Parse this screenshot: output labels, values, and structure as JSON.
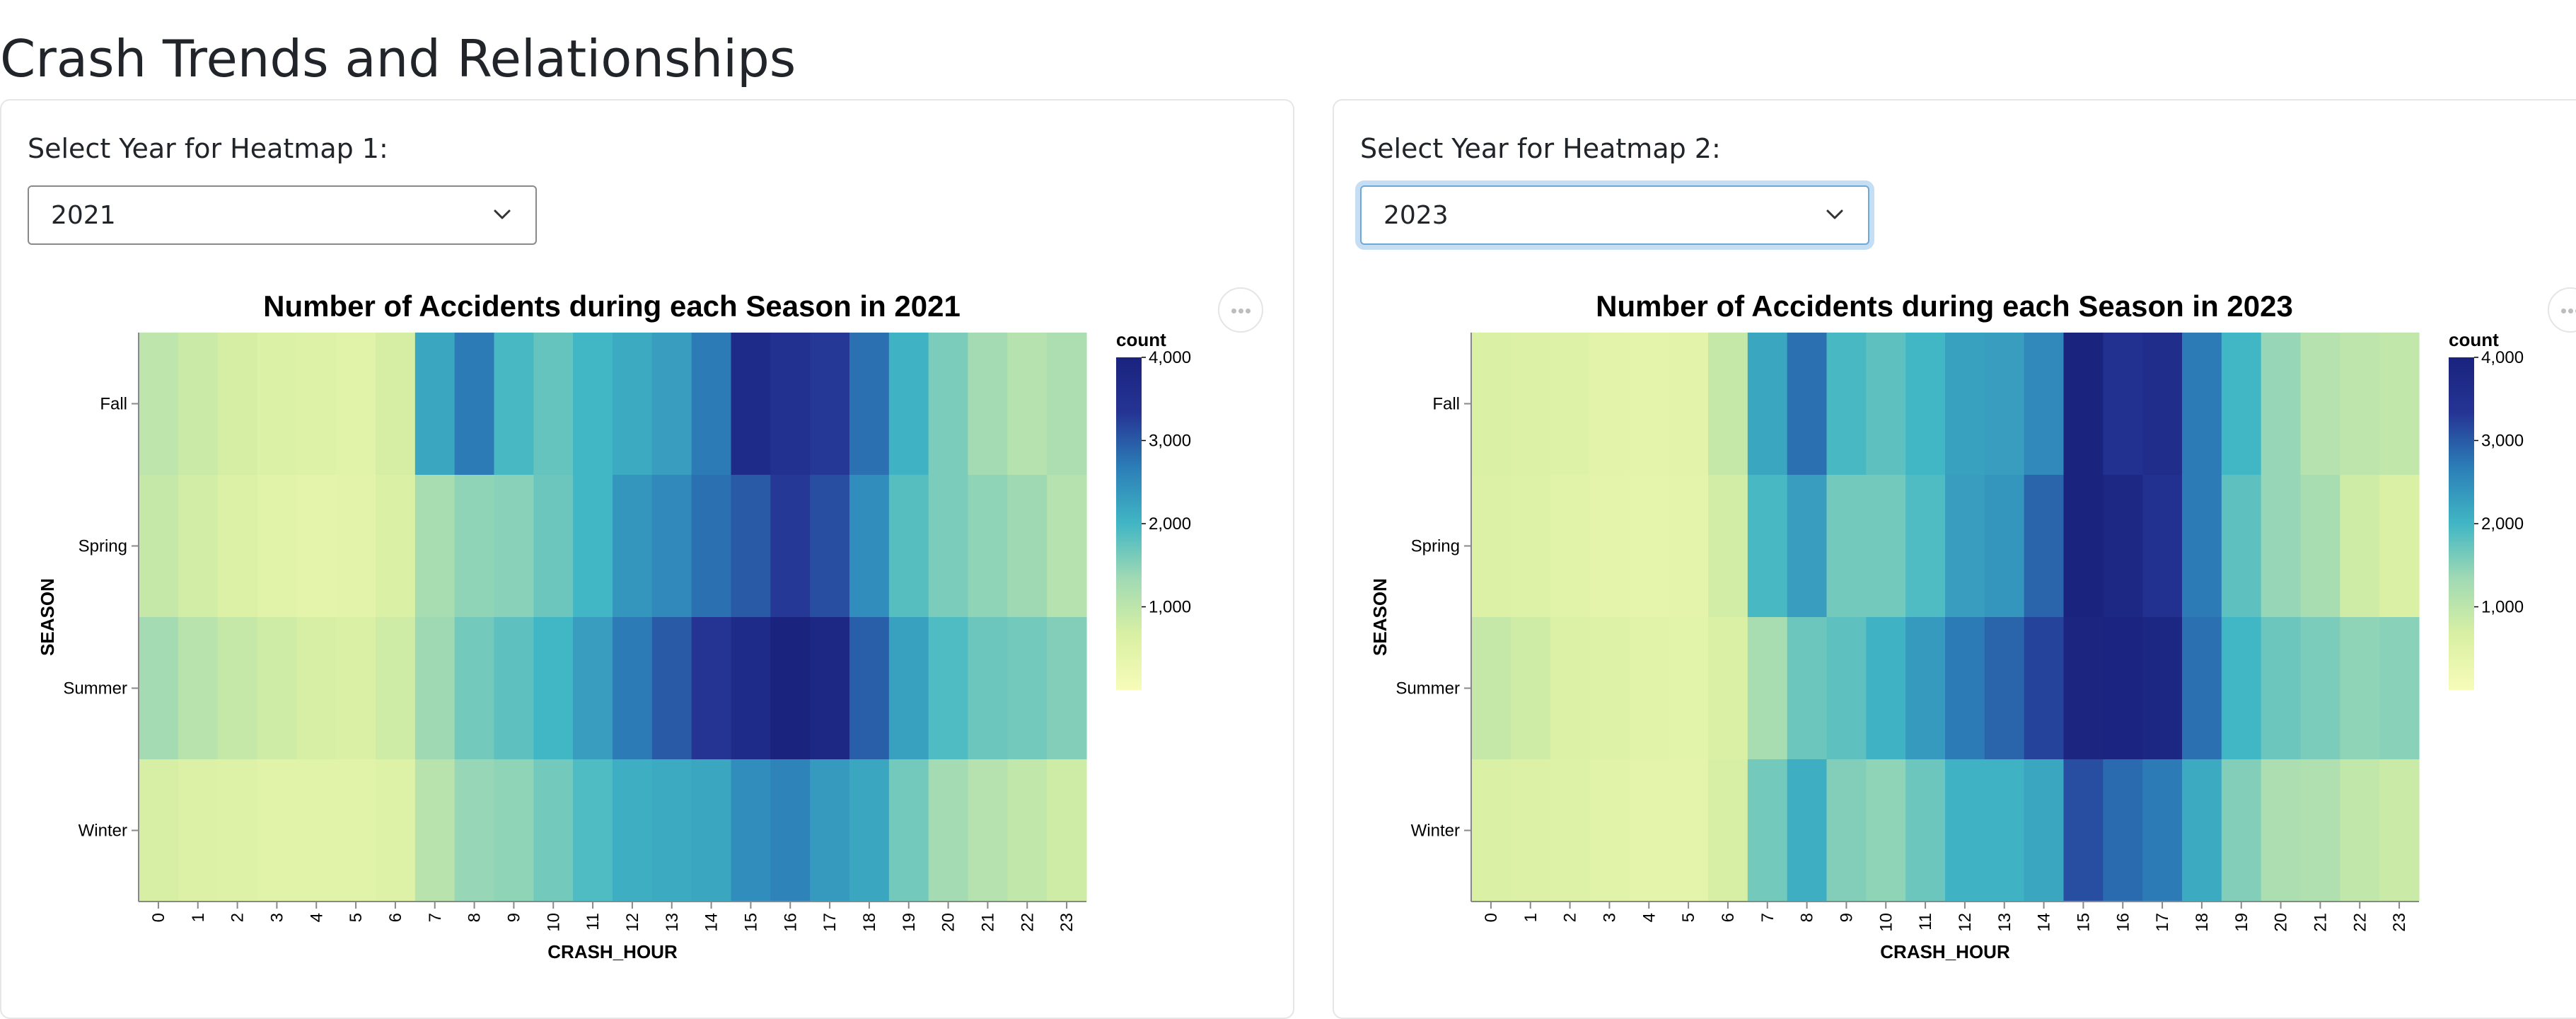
{
  "page": {
    "title": "Crash Trends and Relationships"
  },
  "panels": [
    {
      "select_label": "Select Year for Heatmap 1:",
      "selected_year": "2021",
      "focused": false
    },
    {
      "select_label": "Select Year for Heatmap 2:",
      "selected_year": "2023",
      "focused": true
    }
  ],
  "icons": {
    "dropdown": "chevron-down-icon",
    "menu": "more-horizontal-icon"
  },
  "color_scale": {
    "domain": [
      0,
      4000
    ],
    "stops": [
      "#f7fcb9",
      "#d9f0a3",
      "#a1dab4",
      "#41b6c4",
      "#2c7fb8",
      "#253494",
      "#1a237e"
    ]
  },
  "chart_data": [
    {
      "type": "heatmap",
      "title": "Number of Accidents during each Season in 2021",
      "xlabel": "CRASH_HOUR",
      "ylabel": "SEASON",
      "x": [
        "0",
        "1",
        "2",
        "3",
        "4",
        "5",
        "6",
        "7",
        "8",
        "9",
        "10",
        "11",
        "12",
        "13",
        "14",
        "15",
        "16",
        "17",
        "18",
        "19",
        "20",
        "21",
        "22",
        "23"
      ],
      "y": [
        "Fall",
        "Spring",
        "Summer",
        "Winter"
      ],
      "values": [
        [
          1000,
          850,
          720,
          620,
          560,
          520,
          720,
          2200,
          2700,
          1950,
          1750,
          2000,
          2150,
          2300,
          2700,
          3700,
          3500,
          3300,
          2800,
          2050,
          1600,
          1300,
          1100,
          1200
        ],
        [
          900,
          750,
          600,
          520,
          420,
          450,
          650,
          1250,
          1450,
          1500,
          1700,
          2000,
          2400,
          2550,
          2800,
          3000,
          3300,
          3100,
          2500,
          1850,
          1600,
          1450,
          1350,
          1100
        ],
        [
          1300,
          1050,
          900,
          780,
          700,
          650,
          800,
          1350,
          1650,
          1800,
          2000,
          2300,
          2700,
          3000,
          3350,
          3700,
          4000,
          3800,
          2950,
          2250,
          1900,
          1700,
          1650,
          1550
        ],
        [
          700,
          600,
          550,
          500,
          480,
          480,
          550,
          1050,
          1400,
          1450,
          1650,
          1900,
          2100,
          2150,
          2200,
          2500,
          2600,
          2350,
          2200,
          1650,
          1300,
          1100,
          950,
          800
        ]
      ],
      "legend_title": "count",
      "legend_ticks": [
        1000,
        2000,
        3000,
        4000
      ],
      "legend_tick_labels": [
        "1,000",
        "2,000",
        "3,000",
        "4,000"
      ]
    },
    {
      "type": "heatmap",
      "title": "Number of Accidents during each Season in 2023",
      "xlabel": "CRASH_HOUR",
      "ylabel": "SEASON",
      "x": [
        "0",
        "1",
        "2",
        "3",
        "4",
        "5",
        "6",
        "7",
        "8",
        "9",
        "10",
        "11",
        "12",
        "13",
        "14",
        "15",
        "16",
        "17",
        "18",
        "19",
        "20",
        "21",
        "22",
        "23"
      ],
      "y": [
        "Fall",
        "Spring",
        "Summer",
        "Winter"
      ],
      "values": [
        [
          650,
          600,
          550,
          450,
          420,
          450,
          900,
          2200,
          2800,
          1950,
          1800,
          2000,
          2250,
          2300,
          2550,
          4000,
          3500,
          3600,
          2700,
          2000,
          1400,
          1100,
          1000,
          950
        ],
        [
          600,
          550,
          500,
          420,
          380,
          420,
          750,
          1950,
          2300,
          1650,
          1650,
          1900,
          2300,
          2400,
          2900,
          4000,
          3800,
          3500,
          2700,
          1800,
          1400,
          1250,
          800,
          650
        ],
        [
          900,
          800,
          600,
          550,
          500,
          470,
          650,
          1250,
          1700,
          1800,
          2050,
          2350,
          2700,
          2900,
          3200,
          3900,
          3950,
          3850,
          2800,
          2000,
          1700,
          1600,
          1450,
          1500
        ],
        [
          650,
          600,
          550,
          500,
          420,
          420,
          700,
          1650,
          2100,
          1550,
          1450,
          1700,
          2050,
          2050,
          2200,
          3100,
          2850,
          2700,
          2150,
          1550,
          1200,
          1150,
          950,
          850
        ]
      ],
      "legend_title": "count",
      "legend_ticks": [
        1000,
        2000,
        3000,
        4000
      ],
      "legend_tick_labels": [
        "1,000",
        "2,000",
        "3,000",
        "4,000"
      ]
    }
  ]
}
